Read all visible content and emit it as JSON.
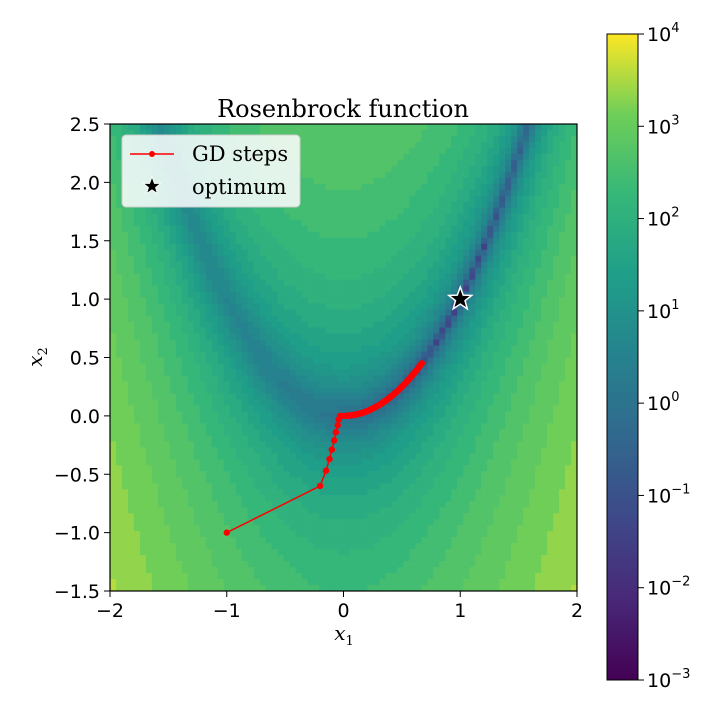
{
  "chart_data": {
    "type": "heatmap",
    "title": "Rosenbrock function",
    "xlabel": "x",
    "xlabel_sub": "1",
    "ylabel": "x",
    "ylabel_sub": "2",
    "xlim": [
      -2,
      2
    ],
    "ylim": [
      -1.5,
      2.5
    ],
    "x_ticks": [
      {
        "value": -2,
        "label": "−2"
      },
      {
        "value": -1,
        "label": "−1"
      },
      {
        "value": 0,
        "label": "0"
      },
      {
        "value": 1,
        "label": "1"
      },
      {
        "value": 2,
        "label": "2"
      }
    ],
    "y_ticks": [
      {
        "value": -1.5,
        "label": "−1.5"
      },
      {
        "value": -1.0,
        "label": "−1.0"
      },
      {
        "value": -0.5,
        "label": "−0.5"
      },
      {
        "value": 0.0,
        "label": "0.0"
      },
      {
        "value": 0.5,
        "label": "0.5"
      },
      {
        "value": 1.0,
        "label": "1.0"
      },
      {
        "value": 1.5,
        "label": "1.5"
      },
      {
        "value": 2.0,
        "label": "2.0"
      },
      {
        "value": 2.5,
        "label": "2.5"
      }
    ],
    "colorbar": {
      "scale": "log",
      "range": [
        0.001,
        10000
      ],
      "colormap": "viridis",
      "ticks": [
        {
          "value": 0.001,
          "base": "10",
          "exp": "−3"
        },
        {
          "value": 0.01,
          "base": "10",
          "exp": "−2"
        },
        {
          "value": 0.1,
          "base": "10",
          "exp": "−1"
        },
        {
          "value": 1,
          "base": "10",
          "exp": "0"
        },
        {
          "value": 10,
          "base": "10",
          "exp": "1"
        },
        {
          "value": 100,
          "base": "10",
          "exp": "2"
        },
        {
          "value": 1000,
          "base": "10",
          "exp": "3"
        },
        {
          "value": 10000,
          "base": "10",
          "exp": "4"
        }
      ]
    },
    "series": [
      {
        "name": "GD steps",
        "color": "#ff0000",
        "marker": "circle",
        "x": [
          -1.0,
          -0.2,
          -0.15,
          -0.12,
          -0.1,
          -0.08,
          -0.065,
          -0.05,
          -0.04,
          -0.03,
          -0.02,
          0.0,
          0.05,
          0.1,
          0.15,
          0.2,
          0.25,
          0.3,
          0.35,
          0.4,
          0.45,
          0.5,
          0.55,
          0.6,
          0.65,
          0.67
        ],
        "y": [
          -1.0,
          -0.6,
          -0.47,
          -0.37,
          -0.29,
          -0.21,
          -0.14,
          -0.08,
          -0.03,
          0.0,
          0.0,
          0.0,
          0.003,
          0.01,
          0.022,
          0.04,
          0.062,
          0.09,
          0.122,
          0.16,
          0.202,
          0.25,
          0.302,
          0.36,
          0.422,
          0.449
        ]
      },
      {
        "name": "optimum",
        "color": "#000000",
        "marker": "star",
        "x": [
          1.0
        ],
        "y": [
          1.0
        ]
      }
    ],
    "legend_position": "top-left",
    "grid": false
  }
}
